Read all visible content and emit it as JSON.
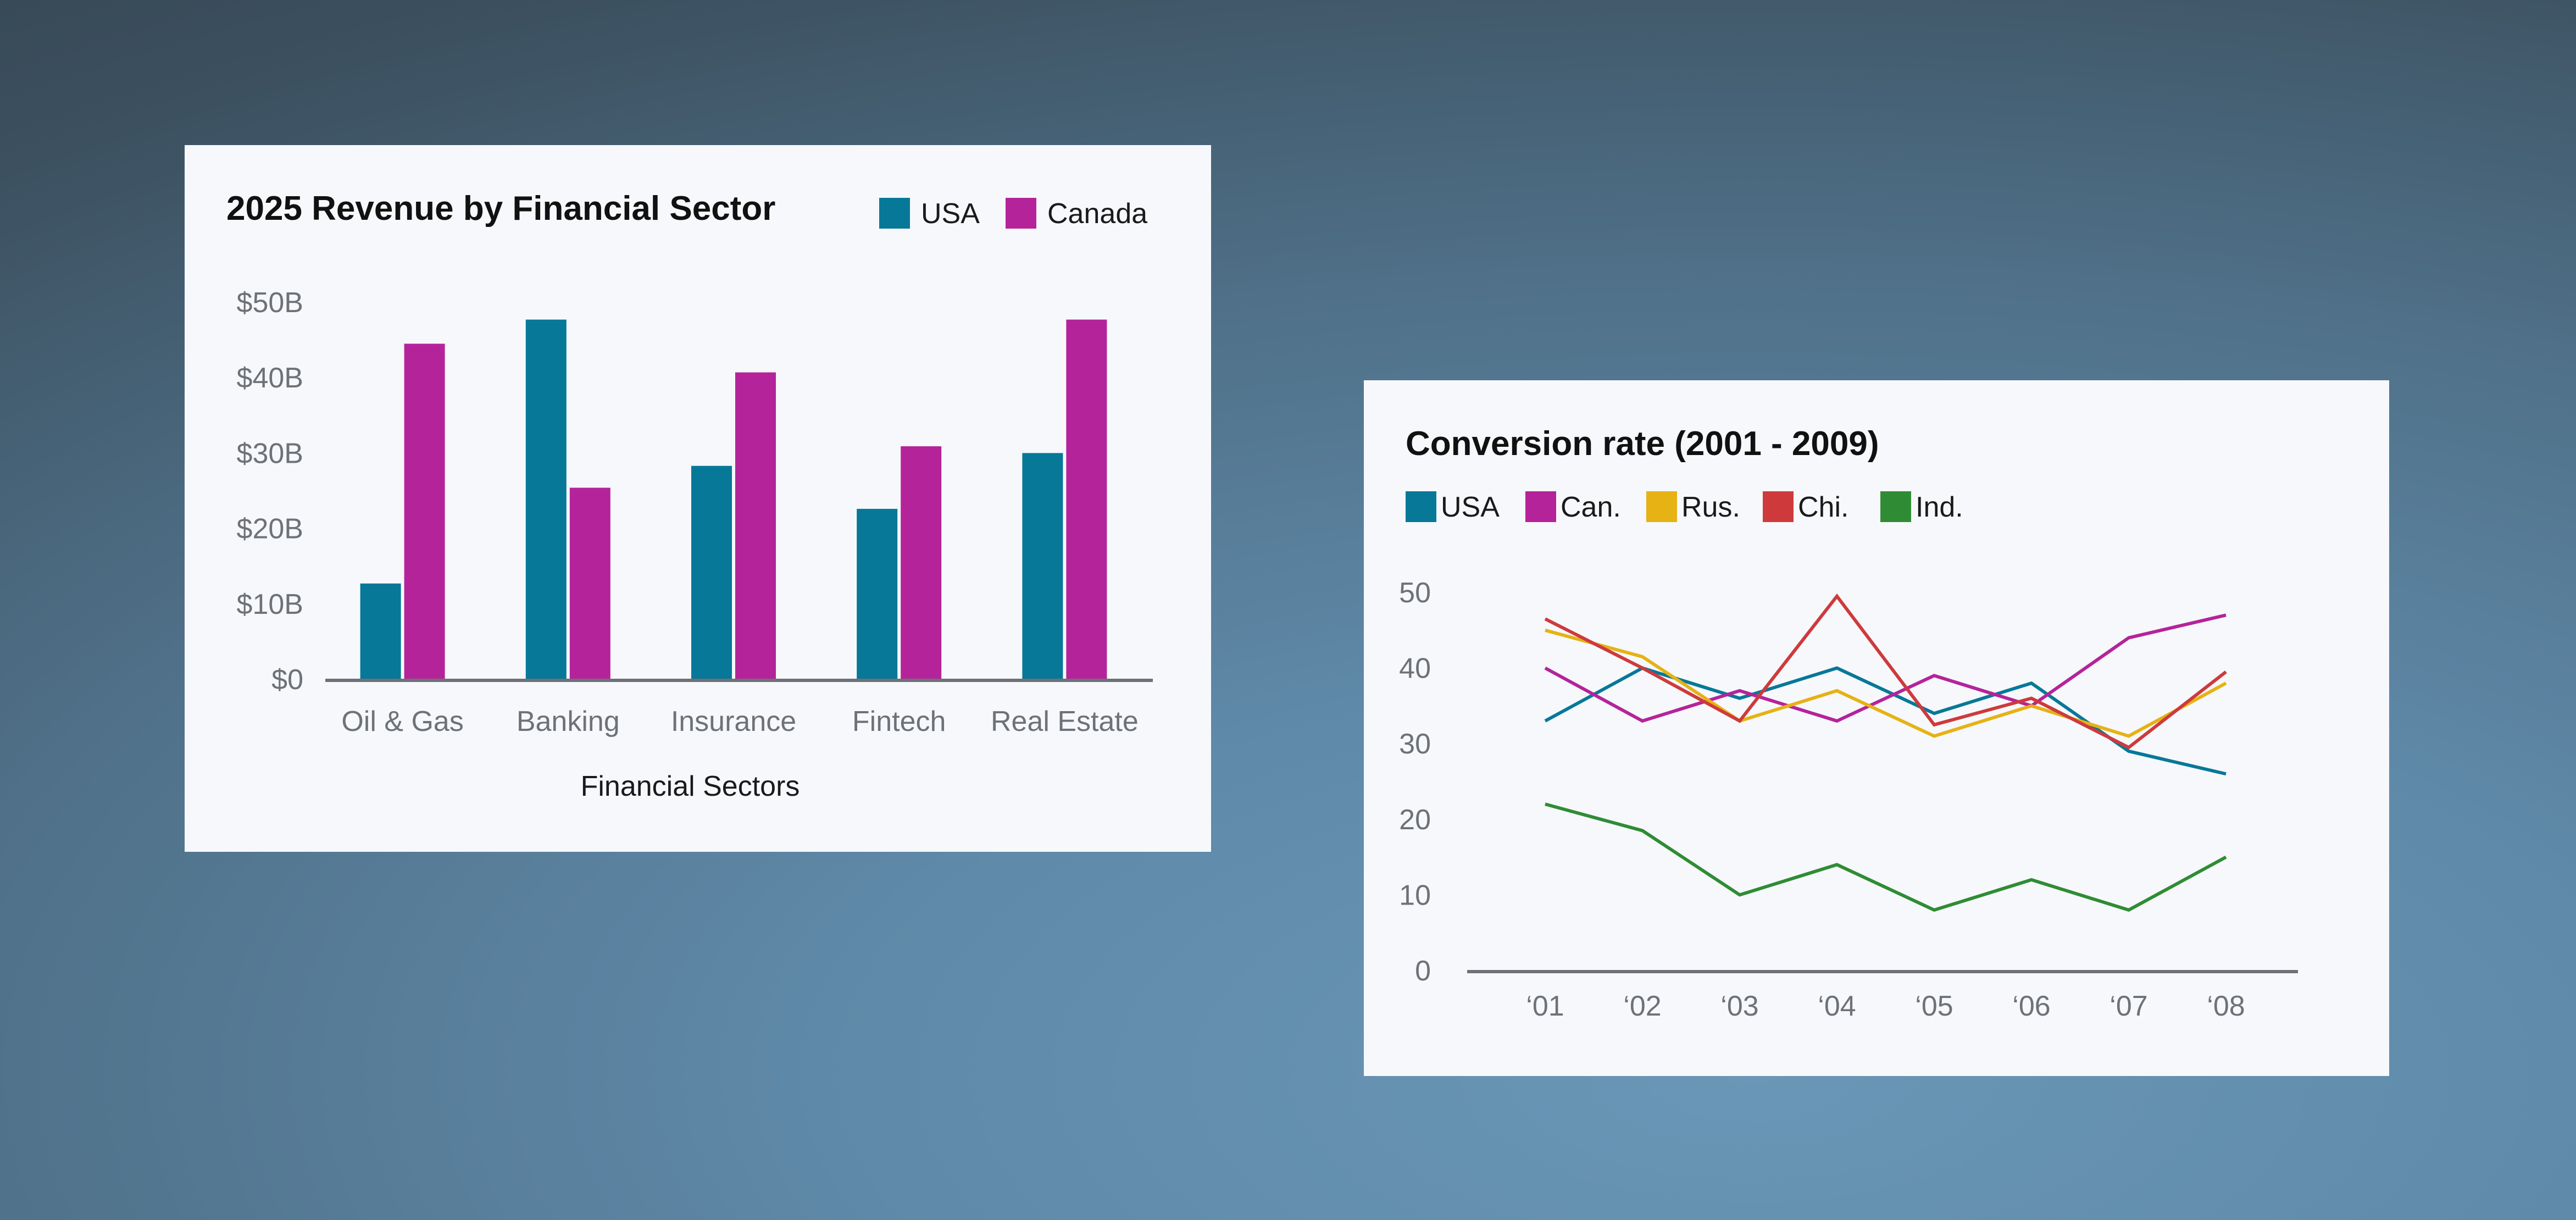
{
  "colors": {
    "usa": "#077898",
    "canada": "#b5239a",
    "russia": "#e6b214",
    "china": "#ce3a3c",
    "india": "#2f8c34",
    "axis": "#6e7276",
    "card": "#f6f8fc"
  },
  "chart_data": [
    {
      "type": "bar",
      "title": "2025 Revenue by Financial Sector",
      "xlabel": "Financial Sectors",
      "ylabel": "",
      "categories": [
        "Oil & Gas",
        "Banking",
        "Insurance",
        "Fintech",
        "Real Estate"
      ],
      "series": [
        {
          "name": "USA",
          "color": "#077898",
          "values": [
            12.7,
            47.7,
            28.3,
            22.6,
            30
          ]
        },
        {
          "name": "Canada",
          "color": "#b5239a",
          "values": [
            44.5,
            25.4,
            40.7,
            30.9,
            47.7
          ]
        }
      ],
      "ylim": [
        0,
        50
      ],
      "yticks": [
        0,
        10,
        20,
        30,
        40,
        50
      ],
      "ytick_labels": [
        "$0",
        "$10B",
        "$20B",
        "$30B",
        "$40B",
        "$50B"
      ],
      "legend": "top-right",
      "grid": false
    },
    {
      "type": "line",
      "title": "Conversion rate (2001 - 2009)",
      "xlabel": "",
      "ylabel": "",
      "x": [
        "‘01",
        "‘02",
        "‘03",
        "‘04",
        "‘05",
        "‘06",
        "‘07",
        "‘08"
      ],
      "series": [
        {
          "name": "USA",
          "color": "#077898",
          "values": [
            33,
            40,
            36,
            40,
            34,
            38,
            29,
            26
          ]
        },
        {
          "name": "Can.",
          "color": "#b5239a",
          "values": [
            40,
            33,
            37,
            33,
            39,
            35,
            44,
            47
          ]
        },
        {
          "name": "Rus.",
          "color": "#e6b214",
          "values": [
            45,
            41.5,
            33,
            37,
            31,
            35,
            31,
            38
          ]
        },
        {
          "name": "Chi.",
          "color": "#ce3a3c",
          "values": [
            46.5,
            40,
            33,
            49.5,
            32.5,
            36,
            29.5,
            39.5
          ]
        },
        {
          "name": "Ind.",
          "color": "#2f8c34",
          "values": [
            22,
            18.5,
            10,
            14,
            8,
            12,
            8,
            15
          ]
        }
      ],
      "ylim": [
        0,
        50
      ],
      "yticks": [
        0,
        10,
        20,
        30,
        40,
        50
      ],
      "ytick_labels": [
        "0",
        "10",
        "20",
        "30",
        "40",
        "50"
      ],
      "legend": "top-left",
      "grid": false
    }
  ]
}
